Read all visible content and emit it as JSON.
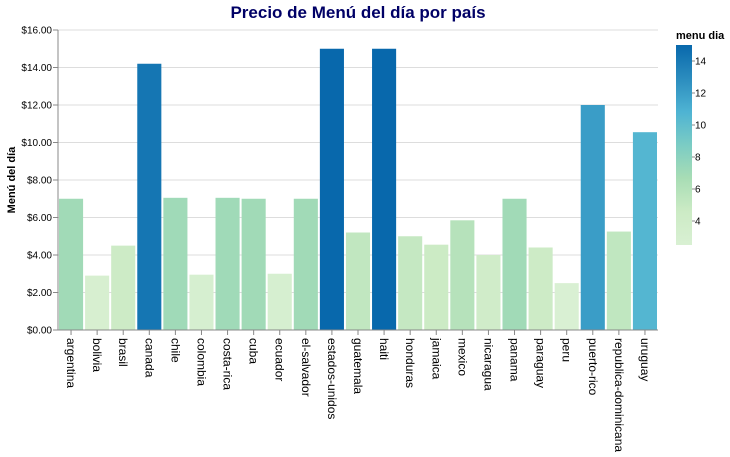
{
  "chart_data": {
    "type": "bar",
    "title": "Precio de Menú del día por país",
    "ylabel": "Menú del día",
    "xlabel": "",
    "ylim": [
      0,
      16
    ],
    "yticks": [
      "$0.00",
      "$2.00",
      "$4.00",
      "$6.00",
      "$8.00",
      "$10.00",
      "$12.00",
      "$14.00",
      "$16.00"
    ],
    "grid": true,
    "categories": [
      "argentina",
      "bolivia",
      "brasil",
      "canada",
      "chile",
      "colombia",
      "costa-rica",
      "cuba",
      "ecuador",
      "el-salvador",
      "estados-unidos",
      "guatemala",
      "haiti",
      "honduras",
      "jamaica",
      "mexico",
      "nicaragua",
      "panama",
      "paraguay",
      "peru",
      "puerto-rico",
      "republica-dominicana",
      "uruguay"
    ],
    "values": [
      7.0,
      2.9,
      4.5,
      14.2,
      7.05,
      2.95,
      7.05,
      7.0,
      3.0,
      7.0,
      15.0,
      5.2,
      15.0,
      5.0,
      4.55,
      5.85,
      4.0,
      7.0,
      4.4,
      2.5,
      12.0,
      5.25,
      10.55
    ],
    "legend": {
      "title": "menu dia",
      "placement": "right",
      "ticks": [
        4,
        6,
        8,
        10,
        12,
        14
      ],
      "domain": [
        2.5,
        15.0
      ]
    },
    "colors": {
      "scale": [
        "#d9f0d3",
        "#ccebc5",
        "#a8ddb5",
        "#7bccc4",
        "#4eb3d3",
        "#2b8cbe",
        "#0868ac"
      ],
      "grid": "#dddddd",
      "axis": "#888888",
      "title": "#000066"
    }
  }
}
